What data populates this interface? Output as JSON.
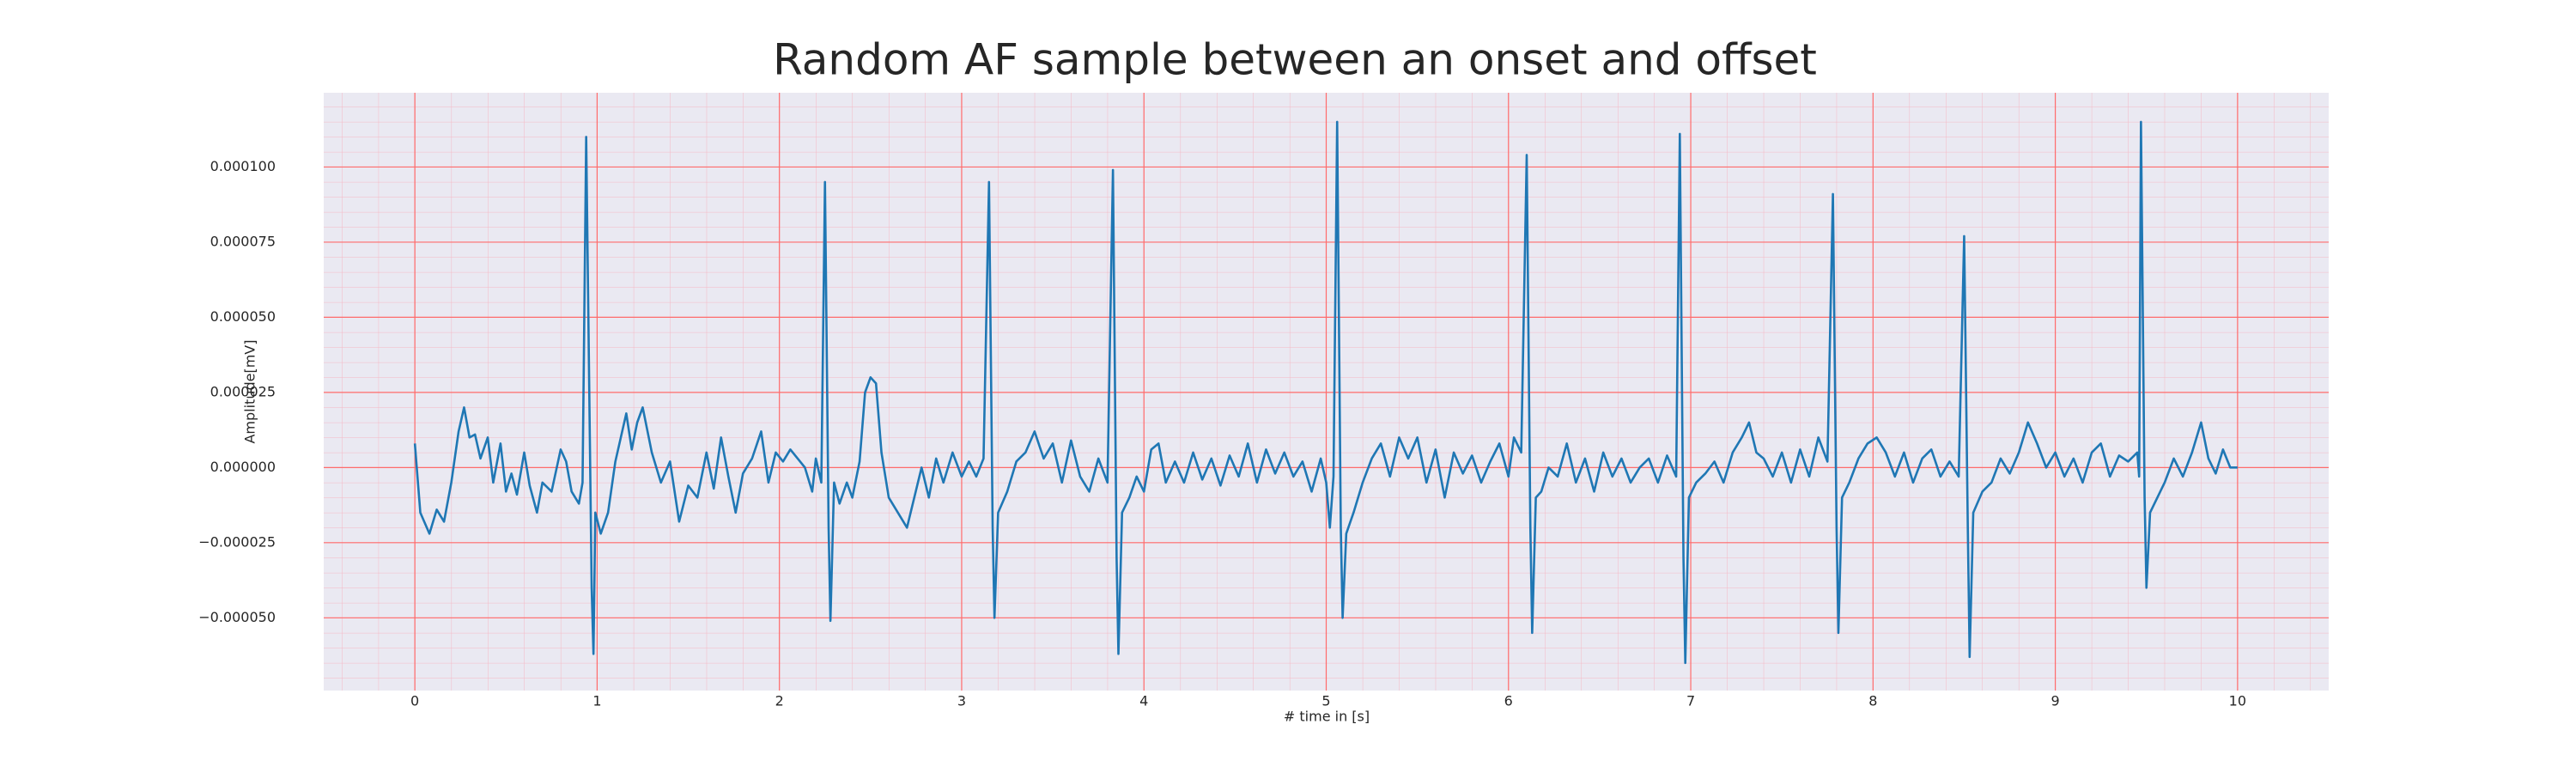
{
  "chart_data": {
    "type": "line",
    "title": "Random AF sample between an onset and offset",
    "xlabel": "# time in [s]",
    "ylabel": "Amplitude[mV]",
    "xlim": [
      -0.5,
      10.5
    ],
    "ylim": [
      -7.42e-05,
      0.0001247
    ],
    "xticks": [
      0,
      1,
      2,
      3,
      4,
      5,
      6,
      7,
      8,
      9,
      10
    ],
    "yticks": [
      {
        "value": -5e-05,
        "label": "−0.000050"
      },
      {
        "value": -2.5e-05,
        "label": "−0.000025"
      },
      {
        "value": 0,
        "label": "0.000000"
      },
      {
        "value": 2.5e-05,
        "label": "0.000025"
      },
      {
        "value": 5e-05,
        "label": "0.000050"
      },
      {
        "value": 7.5e-05,
        "label": "0.000075"
      },
      {
        "value": 0.0001,
        "label": "0.000100"
      }
    ],
    "grid": true,
    "grid_color": "#ff6b6b",
    "minor_grid": true,
    "background": "#eae9f2",
    "x": [
      0,
      0.03,
      0.08,
      0.12,
      0.16,
      0.2,
      0.24,
      0.27,
      0.3,
      0.33,
      0.36,
      0.4,
      0.43,
      0.47,
      0.5,
      0.53,
      0.56,
      0.6,
      0.63,
      0.67,
      0.7,
      0.75,
      0.8,
      0.83,
      0.86,
      0.9,
      0.92,
      0.94,
      0.97,
      0.98,
      0.99,
      1.02,
      1.06,
      1.1,
      1.13,
      1.16,
      1.19,
      1.22,
      1.25,
      1.3,
      1.35,
      1.4,
      1.45,
      1.5,
      1.55,
      1.6,
      1.64,
      1.68,
      1.72,
      1.76,
      1.8,
      1.85,
      1.9,
      1.94,
      1.98,
      2.02,
      2.06,
      2.1,
      2.14,
      2.18,
      2.2,
      2.23,
      2.25,
      2.27,
      2.28,
      2.3,
      2.33,
      2.37,
      2.4,
      2.44,
      2.47,
      2.5,
      2.53,
      2.56,
      2.6,
      2.65,
      2.7,
      2.74,
      2.78,
      2.82,
      2.86,
      2.9,
      2.95,
      3,
      3.04,
      3.08,
      3.12,
      3.15,
      3.17,
      3.18,
      3.2,
      3.25,
      3.3,
      3.35,
      3.4,
      3.45,
      3.5,
      3.55,
      3.6,
      3.65,
      3.7,
      3.75,
      3.8,
      3.83,
      3.85,
      3.86,
      3.88,
      3.92,
      3.96,
      4,
      4.04,
      4.08,
      4.12,
      4.17,
      4.22,
      4.27,
      4.32,
      4.37,
      4.42,
      4.47,
      4.52,
      4.57,
      4.62,
      4.67,
      4.72,
      4.77,
      4.82,
      4.87,
      4.92,
      4.97,
      5,
      5.02,
      5.04,
      5.06,
      5.08,
      5.09,
      5.11,
      5.15,
      5.2,
      5.25,
      5.3,
      5.35,
      5.4,
      5.45,
      5.5,
      5.55,
      5.6,
      5.65,
      5.7,
      5.75,
      5.8,
      5.85,
      5.9,
      5.95,
      6,
      6.03,
      6.07,
      6.1,
      6.12,
      6.13,
      6.15,
      6.18,
      6.22,
      6.27,
      6.32,
      6.37,
      6.42,
      6.47,
      6.52,
      6.57,
      6.62,
      6.67,
      6.72,
      6.77,
      6.82,
      6.87,
      6.92,
      6.94,
      6.96,
      6.97,
      6.99,
      7.03,
      7.08,
      7.13,
      7.18,
      7.23,
      7.28,
      7.32,
      7.36,
      7.4,
      7.45,
      7.5,
      7.55,
      7.6,
      7.65,
      7.7,
      7.75,
      7.78,
      7.8,
      7.81,
      7.83,
      7.87,
      7.92,
      7.97,
      8.02,
      8.07,
      8.12,
      8.17,
      8.22,
      8.27,
      8.32,
      8.37,
      8.42,
      8.47,
      8.5,
      8.52,
      8.53,
      8.55,
      8.6,
      8.65,
      8.7,
      8.75,
      8.8,
      8.85,
      8.9,
      8.95,
      9,
      9.05,
      9.1,
      9.15,
      9.2,
      9.25,
      9.3,
      9.35,
      9.4,
      9.45,
      9.46,
      9.47,
      9.49,
      9.5,
      9.52,
      9.56,
      9.6,
      9.65,
      9.7,
      9.75,
      9.8,
      9.84,
      9.88,
      9.92,
      9.96,
      10
    ],
    "series": [
      {
        "name": "signal",
        "color": "#1f77b4",
        "values": [
          8e-06,
          -1.5e-05,
          -2.2e-05,
          -1.4e-05,
          -1.8e-05,
          -5e-06,
          1.2e-05,
          2e-05,
          1e-05,
          1.1e-05,
          3e-06,
          1e-05,
          -5e-06,
          8e-06,
          -8e-06,
          -2e-06,
          -9e-06,
          5e-06,
          -6e-06,
          -1.5e-05,
          -5e-06,
          -8e-06,
          6e-06,
          2e-06,
          -8e-06,
          -1.2e-05,
          -5e-06,
          0.00011,
          -4e-05,
          -6.2e-05,
          -1.5e-05,
          -2.2e-05,
          -1.5e-05,
          2e-06,
          1e-05,
          1.8e-05,
          6e-06,
          1.5e-05,
          2e-05,
          5e-06,
          -5e-06,
          2e-06,
          -1.8e-05,
          -6e-06,
          -1e-05,
          5e-06,
          -7e-06,
          1e-05,
          -3e-06,
          -1.5e-05,
          -2e-06,
          3e-06,
          1.2e-05,
          -5e-06,
          5e-06,
          2e-06,
          6e-06,
          3e-06,
          0,
          -8e-06,
          3e-06,
          -5e-06,
          9.5e-05,
          -2e-05,
          -5.1e-05,
          -5e-06,
          -1.2e-05,
          -5e-06,
          -1e-05,
          2e-06,
          2.5e-05,
          3e-05,
          2.8e-05,
          5e-06,
          -1e-05,
          -1.5e-05,
          -2e-05,
          -1e-05,
          0,
          -1e-05,
          3e-06,
          -5e-06,
          5e-06,
          -3e-06,
          2e-06,
          -3e-06,
          3e-06,
          9.5e-05,
          -2e-05,
          -5e-05,
          -1.5e-05,
          -8e-06,
          2e-06,
          5e-06,
          1.2e-05,
          3e-06,
          8e-06,
          -5e-06,
          9e-06,
          -3e-06,
          -8e-06,
          3e-06,
          -5e-06,
          9.9e-05,
          -3e-05,
          -6.2e-05,
          -1.5e-05,
          -1e-05,
          -3e-06,
          -8e-06,
          6e-06,
          8e-06,
          -5e-06,
          2e-06,
          -5e-06,
          5e-06,
          -4e-06,
          3e-06,
          -6e-06,
          4e-06,
          -3e-06,
          8e-06,
          -5e-06,
          6e-06,
          -2e-06,
          5e-06,
          -3e-06,
          2e-06,
          -8e-06,
          3e-06,
          -5e-06,
          -2e-05,
          -3e-06,
          0.000115,
          -2e-05,
          -5e-05,
          -2.2e-05,
          -1.5e-05,
          -5e-06,
          3e-06,
          8e-06,
          -3e-06,
          1e-05,
          3e-06,
          1e-05,
          -5e-06,
          6e-06,
          -1e-05,
          5e-06,
          -2e-06,
          4e-06,
          -5e-06,
          2e-06,
          8e-06,
          -3e-06,
          1e-05,
          5e-06,
          0.000104,
          -2e-05,
          -5.5e-05,
          -1e-05,
          -8e-06,
          0,
          -3e-06,
          8e-06,
          -5e-06,
          3e-06,
          -8e-06,
          5e-06,
          -3e-06,
          3e-06,
          -5e-06,
          0,
          3e-06,
          -5e-06,
          4e-06,
          -3e-06,
          0.000111,
          -3e-05,
          -6.5e-05,
          -1e-05,
          -5e-06,
          -2e-06,
          2e-06,
          -5e-06,
          5e-06,
          1e-05,
          1.5e-05,
          5e-06,
          3e-06,
          -3e-06,
          5e-06,
          -5e-06,
          6e-06,
          -3e-06,
          1e-05,
          2e-06,
          9.1e-05,
          -2e-05,
          -5.5e-05,
          -1e-05,
          -5e-06,
          3e-06,
          8e-06,
          1e-05,
          5e-06,
          -3e-06,
          5e-06,
          -5e-06,
          3e-06,
          6e-06,
          -3e-06,
          2e-06,
          -3e-06,
          7.7e-05,
          -2e-05,
          -6.3e-05,
          -1.5e-05,
          -8e-06,
          -5e-06,
          3e-06,
          -2e-06,
          5e-06,
          1.5e-05,
          8e-06,
          0,
          5e-06,
          -3e-06,
          3e-06,
          -5e-06,
          5e-06,
          8e-06,
          -3e-06,
          4e-06,
          2e-06,
          5e-06,
          -3e-06,
          0.000115,
          -1e-05,
          -4e-05,
          -1.5e-05,
          -1e-05,
          -5e-06,
          3e-06,
          -3e-06,
          5e-06,
          1.5e-05,
          3e-06,
          -2e-06,
          6e-06,
          0,
          0
        ]
      }
    ]
  }
}
